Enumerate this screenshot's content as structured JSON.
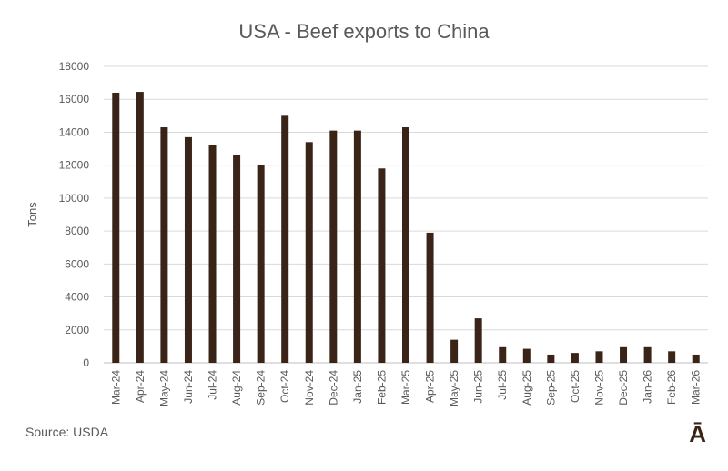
{
  "source_text": "Source: USDA",
  "logo_text": "Ā",
  "colors": {
    "bar": "#3a2418",
    "grid": "#d9d9d9",
    "text": "#595959",
    "axis": "#bfbfbf"
  },
  "chart_data": {
    "type": "bar",
    "title": "USA - Beef exports to China",
    "xlabel": "",
    "ylabel": "Tons",
    "ylim": [
      0,
      18000
    ],
    "yticks": [
      0,
      2000,
      4000,
      6000,
      8000,
      10000,
      12000,
      14000,
      16000,
      18000
    ],
    "grid": true,
    "categories": [
      "Mar-24",
      "Apr-24",
      "May-24",
      "Jun-24",
      "Jul-24",
      "Aug-24",
      "Sep-24",
      "Oct-24",
      "Nov-24",
      "Dec-24",
      "Jan-25",
      "Feb-25",
      "Mar-25",
      "Apr-25",
      "May-25",
      "Jun-25",
      "Jul-25",
      "Aug-25",
      "Sep-25",
      "Oct-25",
      "Nov-25",
      "Dec-25",
      "Jan-26",
      "Feb-26",
      "Mar-26"
    ],
    "values": [
      16400,
      16450,
      14300,
      13700,
      13200,
      12600,
      12000,
      15000,
      13400,
      14100,
      14100,
      11800,
      14300,
      7900,
      1400,
      2700,
      950,
      850,
      500,
      600,
      700,
      950,
      950,
      700,
      500
    ]
  }
}
